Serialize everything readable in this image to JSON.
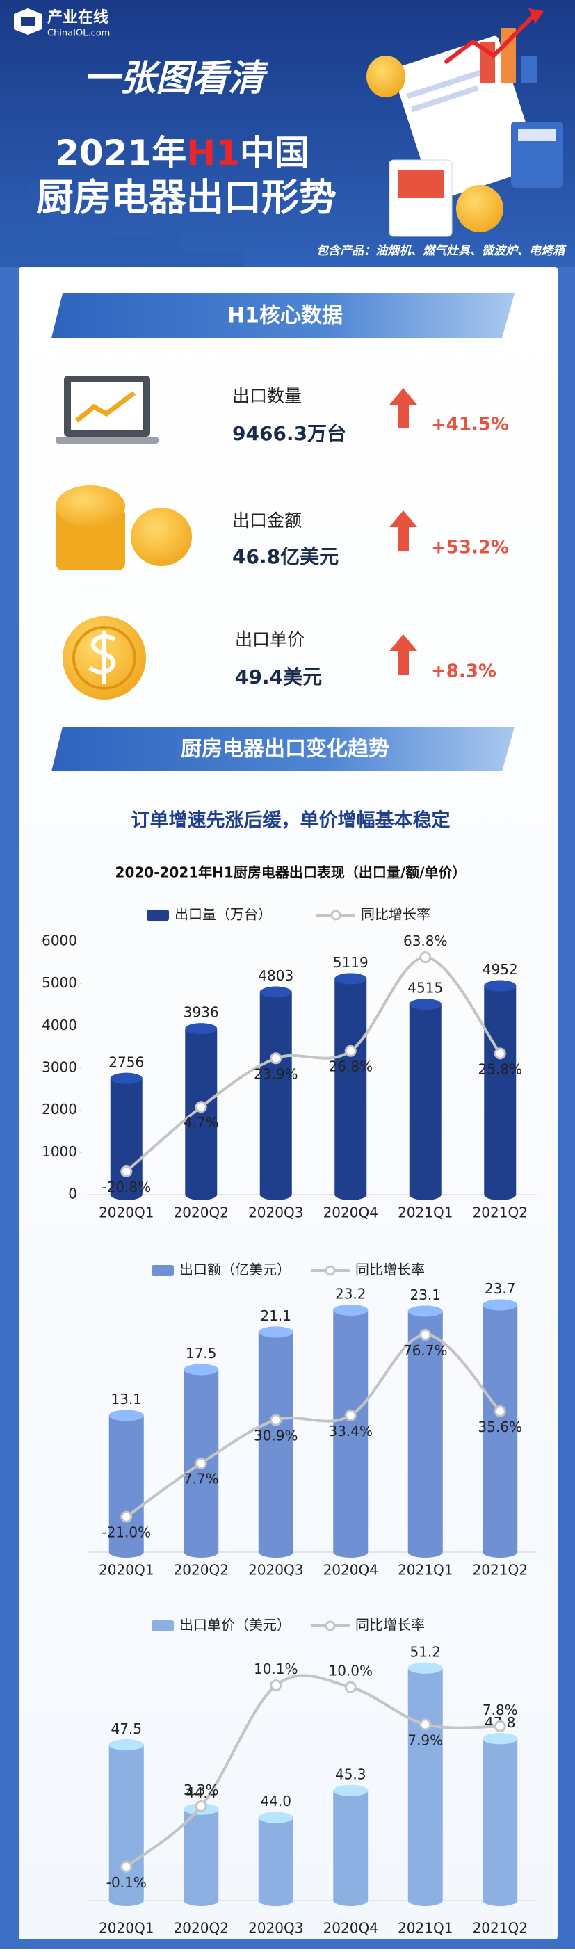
{
  "header": {
    "logo_name": "产业在线",
    "logo_sub": "ChinaIOL.com",
    "headline": "一张图看清",
    "title_line1": [
      "2021年",
      "H1",
      "中国"
    ],
    "title_line2": "厨房电器出口形势",
    "products": "包含产品：油烟机、燃气灶具、微波炉、电烤箱"
  },
  "sections": [
    {
      "title": "H1核心数据"
    },
    {
      "title": "厨房电器出口变化趋势",
      "subtitle": "订单增速先涨后缓，单价增幅基本稳定"
    }
  ],
  "kpis": [
    {
      "label": "出口数量",
      "value": "9466.3万台",
      "change": "+41.5%"
    },
    {
      "label": "出口金额",
      "value": "46.8亿美元",
      "change": "+53.2%"
    },
    {
      "label": "出口单价",
      "value": "49.4美元",
      "change": "+8.3%"
    }
  ],
  "chart_data": [
    {
      "type": "combo",
      "title": "2020-2021年H1厨房电器出口表现（出口量/额/单价）",
      "categories": [
        "2020Q1",
        "2020Q2",
        "2020Q3",
        "2020Q4",
        "2021Q1",
        "2021Q2"
      ],
      "series": [
        {
          "name": "出口量（万台）",
          "type": "bar",
          "color": "#1f3f8c",
          "values": [
            2756,
            3936,
            4803,
            5119,
            4515,
            4952
          ]
        },
        {
          "name": "同比增长率",
          "type": "line",
          "axis": "y2",
          "color": "#c4c4c4",
          "values": [
            -20.8,
            4.7,
            23.9,
            26.8,
            63.8,
            25.8
          ],
          "value_labels": [
            "-20.8%",
            "4.7%",
            "23.9%",
            "26.8%",
            "63.8%",
            "25.8%"
          ]
        }
      ],
      "ylim": [
        0,
        6000
      ],
      "yticks": [
        0,
        1000,
        2000,
        3000,
        4000,
        5000,
        6000
      ],
      "y2lim": [
        -30,
        70
      ]
    },
    {
      "type": "combo",
      "categories": [
        "2020Q1",
        "2020Q2",
        "2020Q3",
        "2020Q4",
        "2021Q1",
        "2021Q2"
      ],
      "series": [
        {
          "name": "出口额（亿美元）",
          "type": "bar",
          "color": "#6f90d2",
          "values": [
            13.1,
            17.5,
            21.1,
            23.2,
            23.1,
            23.7
          ]
        },
        {
          "name": "同比增长率",
          "type": "line",
          "axis": "y2",
          "color": "#c4c4c4",
          "values": [
            -21.0,
            7.7,
            30.9,
            33.4,
            76.7,
            35.6
          ],
          "value_labels": [
            "-21.0%",
            "7.7%",
            "30.9%",
            "33.4%",
            "76.7%",
            "35.6%"
          ]
        }
      ],
      "ylim": [
        0,
        25
      ],
      "y2lim": [
        -40,
        100
      ]
    },
    {
      "type": "combo",
      "categories": [
        "2020Q1",
        "2020Q2",
        "2020Q3",
        "2020Q4",
        "2021Q1",
        "2021Q2"
      ],
      "series": [
        {
          "name": "出口单价（美元）",
          "type": "bar",
          "color": "#8db0e2",
          "values": [
            47.5,
            44.4,
            44.0,
            45.3,
            51.2,
            47.8
          ],
          "value_labels": [
            "47.5",
            "44.4",
            "44.0",
            "45.3",
            "51.2",
            "47.8"
          ]
        },
        {
          "name": "同比增长率",
          "type": "line",
          "axis": "y2",
          "color": "#c4c4c4",
          "values": [
            -0.1,
            3.3,
            10.1,
            10.0,
            7.9,
            7.8
          ],
          "value_labels": [
            "-0.1%",
            "3.3%",
            "10.1%",
            "10.0%",
            "7.9%",
            "7.8%"
          ]
        }
      ],
      "ylim": [
        40,
        52
      ],
      "y2lim": [
        -2,
        12
      ]
    }
  ]
}
